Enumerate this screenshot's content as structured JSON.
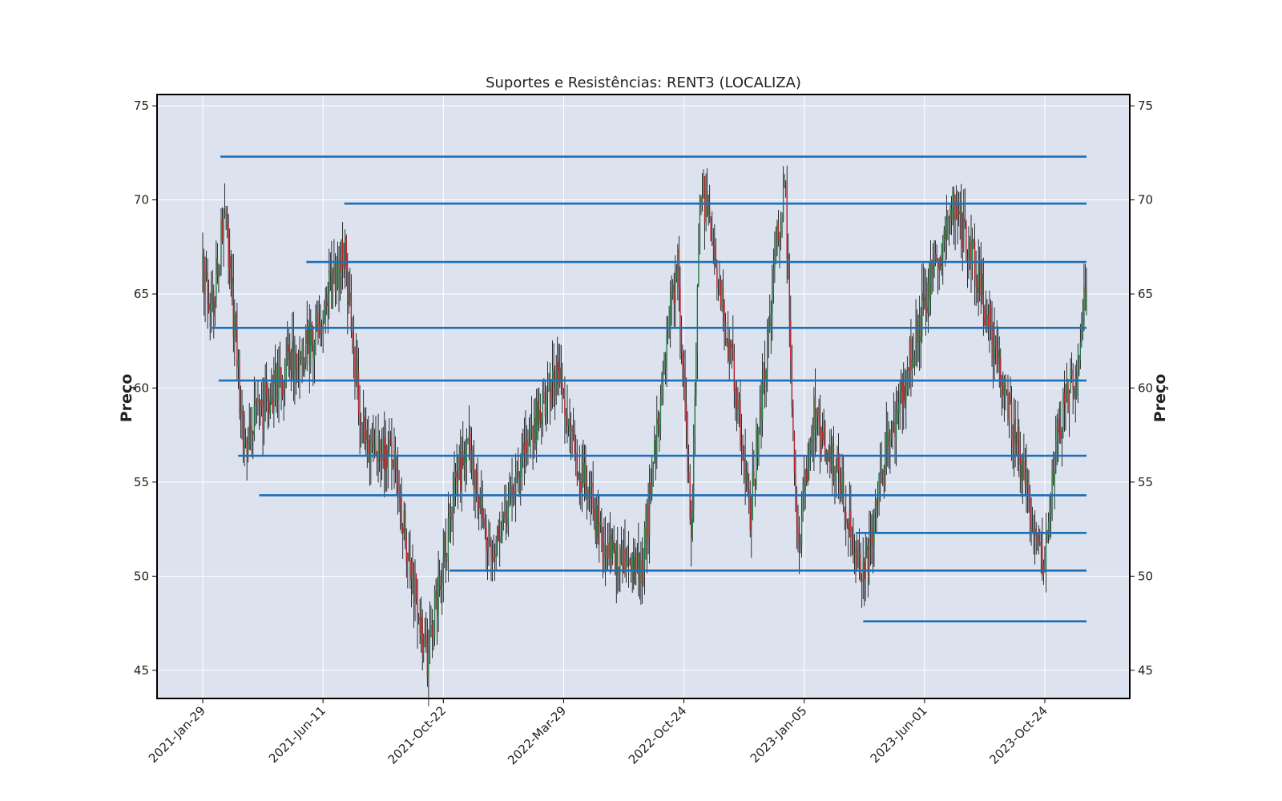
{
  "chart_data": {
    "type": "candlestick",
    "title": "Suportes e Resistências: RENT3 (LOCALIZA)",
    "ylabel": "Preço",
    "ylabel_right": "Preço",
    "xlabel": "",
    "ylim": [
      43.5,
      75.6
    ],
    "yticks": [
      45,
      50,
      55,
      60,
      65,
      70,
      75
    ],
    "xtick_labels": [
      "2021-Jan-29",
      "2021-Jun-11",
      "2021-Oct-22",
      "2022-Mar-29",
      "2022-Oct-24",
      "2023-Jan-05",
      "2023-Jun-01",
      "2023-Oct-24"
    ],
    "grid": true,
    "colors": {
      "background": "#dce3ef",
      "grid": "#ffffff",
      "line": "#1f6fb5",
      "up": "#1f7a3f",
      "down": "#b8202a",
      "wick": "#000000"
    },
    "support_resistance_lines": [
      {
        "value": 72.3,
        "start": "2021-Feb-19"
      },
      {
        "value": 69.8,
        "start": "2021-Jul-16"
      },
      {
        "value": 66.7,
        "start": "2021-Jun-01"
      },
      {
        "value": 63.2,
        "start": "2021-Feb-08"
      },
      {
        "value": 60.4,
        "start": "2021-Feb-17"
      },
      {
        "value": 56.4,
        "start": "2021-Mar-12"
      },
      {
        "value": 54.3,
        "start": "2021-Apr-06"
      },
      {
        "value": 52.3,
        "start": "2023-Mar-15"
      },
      {
        "value": 50.3,
        "start": "2021-Nov-18"
      },
      {
        "value": 47.6,
        "start": "2023-Mar-24"
      }
    ],
    "price_path": [
      {
        "date": "2021-Jan-29",
        "close": 66.5
      },
      {
        "date": "2021-Feb-08",
        "close": 64.0
      },
      {
        "date": "2021-Feb-25",
        "close": 69.5
      },
      {
        "date": "2021-Mar-18",
        "close": 57.0
      },
      {
        "date": "2021-Apr-06",
        "close": 58.5
      },
      {
        "date": "2021-May-14",
        "close": 61.5
      },
      {
        "date": "2021-Jun-11",
        "close": 62.5
      },
      {
        "date": "2021-Jul-16",
        "close": 67.5
      },
      {
        "date": "2021-Aug-06",
        "close": 57.5
      },
      {
        "date": "2021-Sep-10",
        "close": 56.5
      },
      {
        "date": "2021-Oct-22",
        "close": 45.5
      },
      {
        "date": "2021-Nov-18",
        "close": 53.0
      },
      {
        "date": "2021-Dec-10",
        "close": 57.5
      },
      {
        "date": "2022-Jan-07",
        "close": 50.5
      },
      {
        "date": "2022-Feb-10",
        "close": 56.5
      },
      {
        "date": "2022-Mar-29",
        "close": 61.0
      },
      {
        "date": "2022-Apr-20",
        "close": 56.0
      },
      {
        "date": "2022-May-20",
        "close": 51.5
      },
      {
        "date": "2022-Jul-05",
        "close": 50.5
      },
      {
        "date": "2022-Aug-15",
        "close": 67.0
      },
      {
        "date": "2022-Sep-01",
        "close": 52.0
      },
      {
        "date": "2022-Sep-12",
        "close": 71.0
      },
      {
        "date": "2022-Oct-24",
        "close": 60.0
      },
      {
        "date": "2022-Nov-10",
        "close": 53.5
      },
      {
        "date": "2022-Dec-01",
        "close": 63.0
      },
      {
        "date": "2022-Dec-21",
        "close": 71.5
      },
      {
        "date": "2023-Jan-05",
        "close": 51.0
      },
      {
        "date": "2023-Jan-25",
        "close": 58.5
      },
      {
        "date": "2023-Mar-01",
        "close": 54.5
      },
      {
        "date": "2023-Mar-24",
        "close": 50.0
      },
      {
        "date": "2023-Apr-20",
        "close": 56.5
      },
      {
        "date": "2023-Jun-01",
        "close": 64.0
      },
      {
        "date": "2023-Jul-10",
        "close": 70.0
      },
      {
        "date": "2023-Aug-07",
        "close": 66.0
      },
      {
        "date": "2023-Sep-01",
        "close": 61.5
      },
      {
        "date": "2023-Oct-24",
        "close": 50.3
      },
      {
        "date": "2023-Nov-10",
        "close": 58.0
      },
      {
        "date": "2023-Dec-01",
        "close": 60.5
      },
      {
        "date": "2023-Dec-14",
        "close": 65.5
      }
    ]
  }
}
